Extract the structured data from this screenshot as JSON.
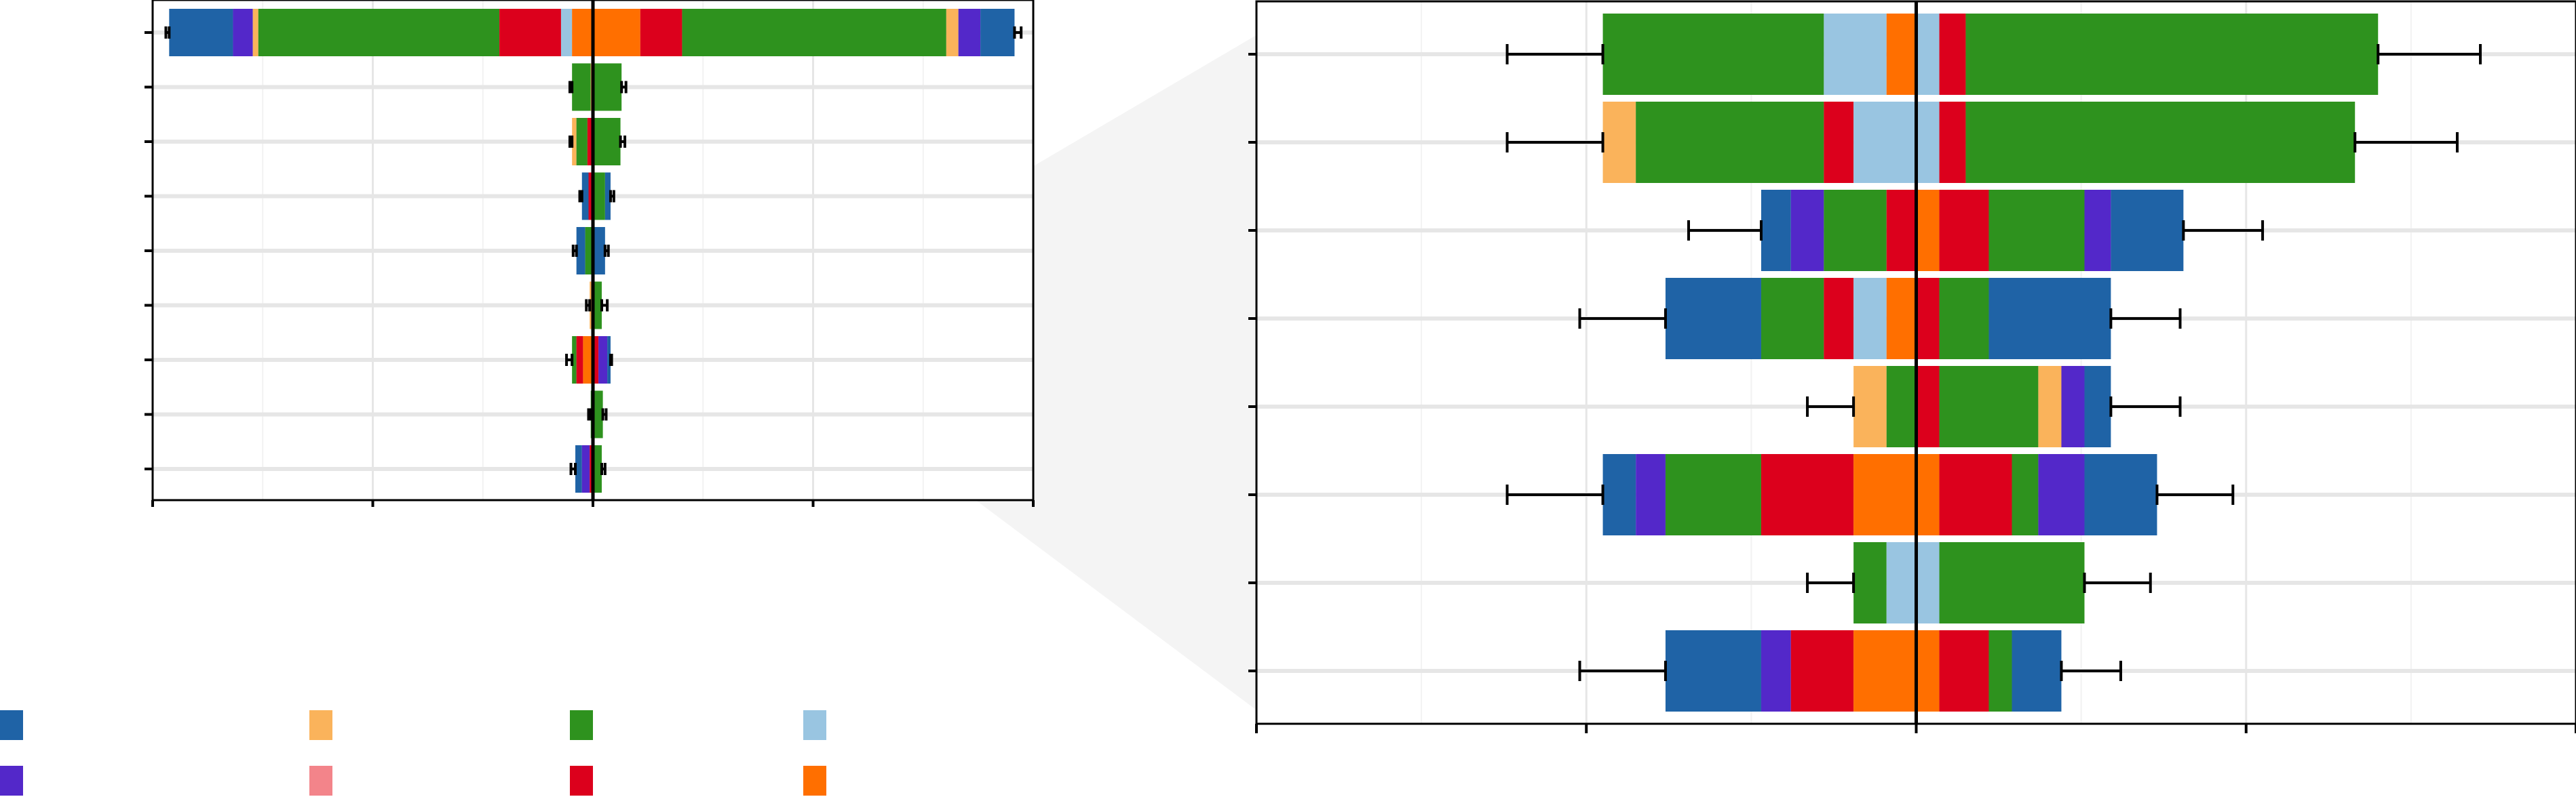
{
  "chart_data": [
    {
      "type": "bar",
      "orientation": "horizontal",
      "stacked": "diverging",
      "panel": "overview",
      "title": "",
      "xlabel": "",
      "ylabel": "",
      "xlim": [
        -40,
        40
      ],
      "x_ticks": [
        -40,
        -20,
        0,
        20,
        40
      ],
      "grid": true,
      "reference_line_x": 0,
      "rows": [
        {
          "segments": [
            [
              -38.5,
              -32.7,
              "c1"
            ],
            [
              -32.7,
              -30.9,
              "c5"
            ],
            [
              -30.9,
              -30.4,
              "c3"
            ],
            [
              -30.4,
              -8.5,
              "c2"
            ],
            [
              -8.5,
              -2.9,
              "c7"
            ],
            [
              -2.9,
              -1.9,
              "c4"
            ],
            [
              -1.9,
              0,
              "c8"
            ],
            [
              0,
              4.3,
              "c8"
            ],
            [
              4.3,
              8.1,
              "c7"
            ],
            [
              8.1,
              32.1,
              "c2"
            ],
            [
              32.1,
              33.2,
              "c3"
            ],
            [
              33.2,
              35.2,
              "c5"
            ],
            [
              35.2,
              38.3,
              "c1"
            ]
          ],
          "whisker": [
            -38.8,
            38.9
          ]
        },
        {
          "segments": [
            [
              -1.9,
              -0.2,
              "c2"
            ],
            [
              -0.2,
              0,
              "c3"
            ],
            [
              0,
              2.6,
              "c2"
            ]
          ],
          "whisker": [
            -2.1,
            3.0
          ]
        },
        {
          "segments": [
            [
              -1.9,
              -1.5,
              "c3"
            ],
            [
              -1.5,
              -0.5,
              "c2"
            ],
            [
              -0.5,
              0,
              "c7"
            ],
            [
              0,
              2.5,
              "c2"
            ]
          ],
          "whisker": [
            -2.1,
            2.9
          ]
        },
        {
          "segments": [
            [
              -1.0,
              -0.4,
              "c1"
            ],
            [
              -0.4,
              0,
              "c7"
            ],
            [
              0,
              1.1,
              "c2"
            ],
            [
              1.1,
              1.6,
              "c1"
            ]
          ],
          "whisker": [
            -1.2,
            1.9
          ]
        },
        {
          "segments": [
            [
              -1.5,
              -0.7,
              "c1"
            ],
            [
              -0.7,
              0,
              "c2"
            ],
            [
              0,
              1.1,
              "c1"
            ]
          ],
          "whisker": [
            -1.8,
            1.4
          ]
        },
        {
          "segments": [
            [
              -0.3,
              0,
              "c3"
            ],
            [
              0,
              0.8,
              "c2"
            ]
          ],
          "whisker": [
            -0.6,
            1.3
          ]
        },
        {
          "segments": [
            [
              -1.9,
              -1.5,
              "c2"
            ],
            [
              -1.5,
              -0.9,
              "c7"
            ],
            [
              -0.9,
              0,
              "c8"
            ],
            [
              0,
              0.5,
              "c7"
            ],
            [
              0.5,
              1.3,
              "c5"
            ],
            [
              1.3,
              1.6,
              "c1"
            ]
          ],
          "whisker": [
            -2.4,
            1.7
          ]
        },
        {
          "segments": [
            [
              -0.2,
              0,
              "c2"
            ],
            [
              0,
              0.9,
              "c2"
            ]
          ],
          "whisker": [
            -0.4,
            1.2
          ]
        },
        {
          "segments": [
            [
              -1.6,
              -1.0,
              "c1"
            ],
            [
              -1.0,
              -0.3,
              "c5"
            ],
            [
              -0.3,
              0,
              "c7"
            ],
            [
              0,
              0.8,
              "c2"
            ]
          ],
          "whisker": [
            -2.0,
            1.1
          ]
        }
      ]
    },
    {
      "type": "bar",
      "orientation": "horizontal",
      "stacked": "diverging",
      "panel": "zoom",
      "title": "",
      "xlabel": "",
      "ylabel": "",
      "xlim": [
        -2,
        2
      ],
      "x_ticks": [
        -2,
        -1,
        0,
        1,
        2
      ],
      "grid": true,
      "reference_line_x": 0,
      "rows": [
        {
          "segments": [
            [
              -0.95,
              -0.28,
              "c2"
            ],
            [
              -0.28,
              -0.09,
              "c4"
            ],
            [
              -0.09,
              0,
              "c8"
            ],
            [
              0,
              0.07,
              "c4"
            ],
            [
              0.07,
              0.15,
              "c7"
            ],
            [
              0.15,
              1.4,
              "c2"
            ]
          ],
          "whisker": [
            -1.24,
            1.71
          ]
        },
        {
          "segments": [
            [
              -0.95,
              -0.85,
              "c3"
            ],
            [
              -0.85,
              -0.28,
              "c2"
            ],
            [
              -0.28,
              -0.19,
              "c7"
            ],
            [
              -0.19,
              0,
              "c4"
            ],
            [
              0,
              0.07,
              "c4"
            ],
            [
              0.07,
              0.15,
              "c7"
            ],
            [
              0.15,
              1.33,
              "c2"
            ]
          ],
          "whisker": [
            -1.24,
            1.64
          ]
        },
        {
          "segments": [
            [
              -0.47,
              -0.38,
              "c1"
            ],
            [
              -0.38,
              -0.28,
              "c5"
            ],
            [
              -0.28,
              -0.09,
              "c2"
            ],
            [
              -0.09,
              0,
              "c7"
            ],
            [
              0,
              0.07,
              "c8"
            ],
            [
              0.07,
              0.22,
              "c7"
            ],
            [
              0.22,
              0.51,
              "c2"
            ],
            [
              0.51,
              0.59,
              "c5"
            ],
            [
              0.59,
              0.81,
              "c1"
            ]
          ],
          "whisker": [
            -0.69,
            1.05
          ]
        },
        {
          "segments": [
            [
              -0.76,
              -0.47,
              "c1"
            ],
            [
              -0.47,
              -0.28,
              "c2"
            ],
            [
              -0.28,
              -0.19,
              "c7"
            ],
            [
              -0.19,
              -0.09,
              "c4"
            ],
            [
              -0.09,
              0,
              "c8"
            ],
            [
              0,
              0.07,
              "c7"
            ],
            [
              0.07,
              0.22,
              "c2"
            ],
            [
              0.22,
              0.59,
              "c1"
            ]
          ],
          "whisker": [
            -1.02,
            0.8
          ]
        },
        {
          "segments": [
            [
              -0.19,
              -0.09,
              "c3"
            ],
            [
              -0.09,
              0,
              "c2"
            ],
            [
              0,
              0.07,
              "c7"
            ],
            [
              0.07,
              0.37,
              "c2"
            ],
            [
              0.37,
              0.44,
              "c3"
            ],
            [
              0.44,
              0.51,
              "c5"
            ],
            [
              0.51,
              0.59,
              "c1"
            ]
          ],
          "whisker": [
            -0.33,
            0.8
          ]
        },
        {
          "segments": [
            [
              -0.95,
              -0.85,
              "c1"
            ],
            [
              -0.85,
              -0.76,
              "c5"
            ],
            [
              -0.76,
              -0.47,
              "c2"
            ],
            [
              -0.47,
              -0.19,
              "c7"
            ],
            [
              -0.19,
              0,
              "c8"
            ],
            [
              0,
              0.07,
              "c8"
            ],
            [
              0.07,
              0.29,
              "c7"
            ],
            [
              0.29,
              0.37,
              "c2"
            ],
            [
              0.37,
              0.51,
              "c5"
            ],
            [
              0.51,
              0.73,
              "c1"
            ]
          ],
          "whisker": [
            -1.24,
            0.96
          ]
        },
        {
          "segments": [
            [
              -0.19,
              -0.09,
              "c2"
            ],
            [
              -0.09,
              0,
              "c4"
            ],
            [
              0,
              0.07,
              "c4"
            ],
            [
              0.07,
              0.51,
              "c2"
            ]
          ],
          "whisker": [
            -0.33,
            0.71
          ]
        },
        {
          "segments": [
            [
              -0.76,
              -0.47,
              "c1"
            ],
            [
              -0.47,
              -0.38,
              "c5"
            ],
            [
              -0.38,
              -0.19,
              "c7"
            ],
            [
              -0.19,
              0,
              "c8"
            ],
            [
              0,
              0.07,
              "c8"
            ],
            [
              0.07,
              0.22,
              "c7"
            ],
            [
              0.22,
              0.29,
              "c2"
            ],
            [
              0.29,
              0.44,
              "c1"
            ]
          ],
          "whisker": [
            -1.02,
            0.62
          ]
        }
      ]
    }
  ],
  "colors": {
    "c1": "#1f63a6",
    "c2": "#2e921e",
    "c3": "#fab35b",
    "c4": "#99c5e1",
    "c5": "#5328c9",
    "c6": "#f3848a",
    "c7": "#dc001c",
    "c8": "#ff6f00"
  },
  "legend": {
    "items": [
      {
        "key": "c1",
        "color": "#1f63a6",
        "label": ""
      },
      {
        "key": "c3",
        "color": "#fab35b",
        "label": ""
      },
      {
        "key": "c2",
        "color": "#2e921e",
        "label": ""
      },
      {
        "key": "c4",
        "color": "#99c5e1",
        "label": ""
      },
      {
        "key": "c5",
        "color": "#5328c9",
        "label": ""
      },
      {
        "key": "c6",
        "color": "#f3848a",
        "label": ""
      },
      {
        "key": "c7",
        "color": "#dc001c",
        "label": ""
      },
      {
        "key": "c8",
        "color": "#ff6f00",
        "label": ""
      }
    ]
  }
}
